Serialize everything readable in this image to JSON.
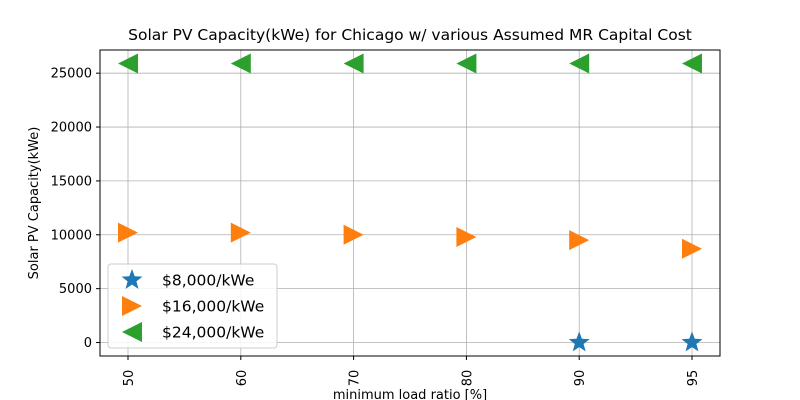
{
  "chart_data": {
    "type": "scatter",
    "title": "Solar PV Capacity(kWe) for Chicago w/ various Assumed MR Capital Cost",
    "xlabel": "minimum load ratio [%]",
    "ylabel": "Solar PV Capacity(kWe)",
    "categories": [
      "50",
      "60",
      "70",
      "80",
      "90",
      "95"
    ],
    "yticks": [
      "0",
      "5000",
      "10000",
      "15000",
      "20000",
      "25000"
    ],
    "ylim": [
      -1250,
      27150
    ],
    "grid": true,
    "legend_position": "lower-left",
    "series": [
      {
        "name": "$8,000/kWe",
        "marker": "star",
        "color": "#1f77b4",
        "points": [
          {
            "x": "90",
            "y": 0
          },
          {
            "x": "95",
            "y": 0
          }
        ]
      },
      {
        "name": "$16,000/kWe",
        "marker": "triangle-right",
        "color": "#ff7f0e",
        "points": [
          {
            "x": "50",
            "y": 10200
          },
          {
            "x": "60",
            "y": 10200
          },
          {
            "x": "70",
            "y": 10000
          },
          {
            "x": "80",
            "y": 9800
          },
          {
            "x": "90",
            "y": 9500
          },
          {
            "x": "95",
            "y": 8700
          }
        ]
      },
      {
        "name": "$24,000/kWe",
        "marker": "triangle-left",
        "color": "#2ca02c",
        "points": [
          {
            "x": "50",
            "y": 25900
          },
          {
            "x": "60",
            "y": 25900
          },
          {
            "x": "70",
            "y": 25900
          },
          {
            "x": "80",
            "y": 25900
          },
          {
            "x": "90",
            "y": 25900
          },
          {
            "x": "95",
            "y": 25900
          }
        ]
      }
    ]
  }
}
